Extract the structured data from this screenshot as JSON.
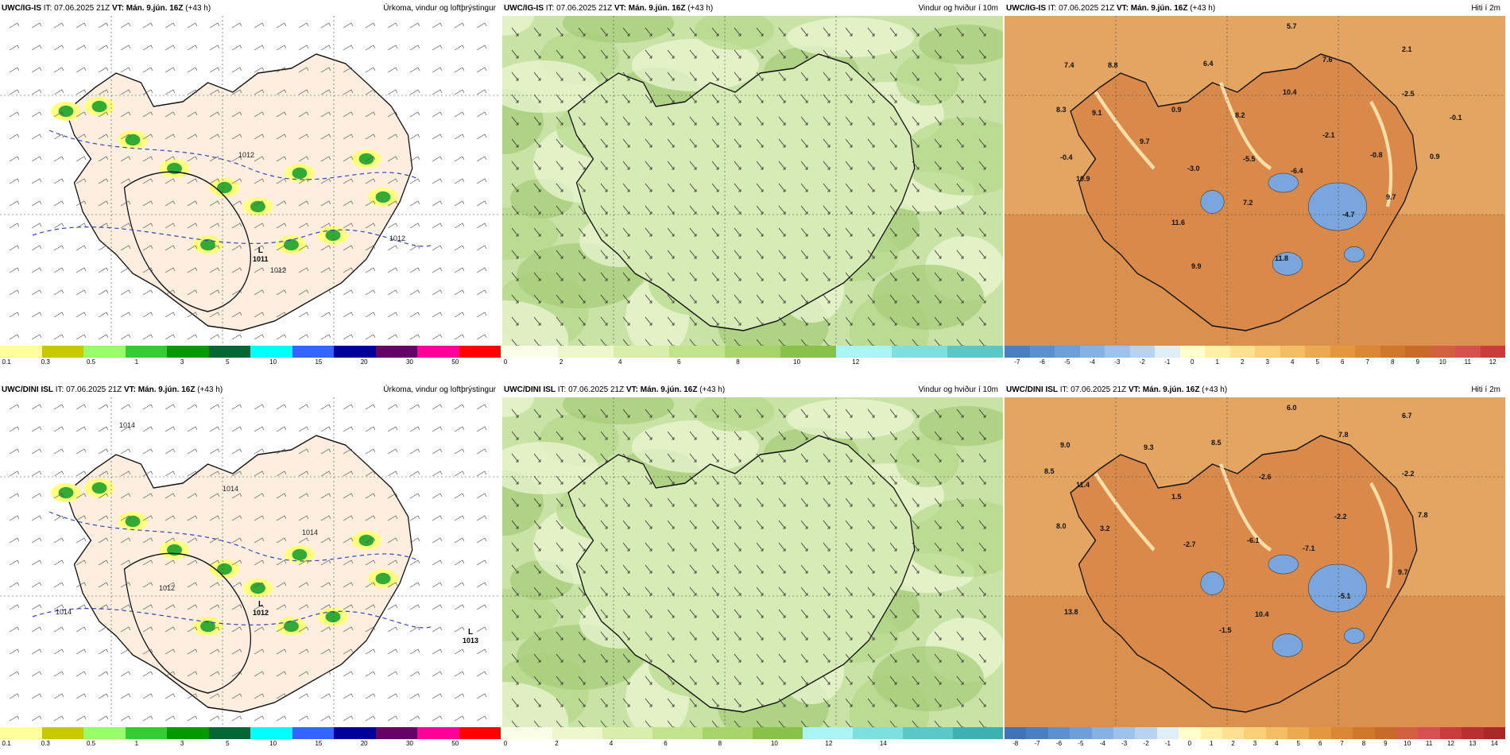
{
  "panels": [
    {
      "row": 0,
      "col": 0,
      "model": "UWC/IG-IS",
      "it_label": "IT:",
      "it": "07.06.2025 21Z",
      "vt_label": "VT:",
      "vt": "Mán. 9.jún. 16Z",
      "lead": "(+43 h)",
      "title": "Úrkoma, vindur og loftþrýstingur",
      "legend_labels": [
        "0.1",
        "0.3",
        "0.5",
        "1",
        "3",
        "5",
        "10",
        "15",
        "20",
        "30",
        "50"
      ],
      "legend_colors": [
        "#ffff99",
        "#c8c800",
        "#99ff66",
        "#33cc33",
        "#009900",
        "#006633",
        "#00ffff",
        "#3366ff",
        "#000099",
        "#660066",
        "#ff0099",
        "#ff0000"
      ],
      "isobars": [
        "1012",
        "1012",
        "1012"
      ],
      "lows": [
        {
          "label": "L",
          "value": "1011"
        }
      ]
    },
    {
      "row": 0,
      "col": 1,
      "model": "UWC/IG-IS",
      "it_label": "IT:",
      "it": "07.06.2025 21Z",
      "vt_label": "VT:",
      "vt": "Mán. 9.jún. 16Z",
      "lead": "(+43 h)",
      "title": "Vindur og hviður í 10m",
      "legend_labels": [
        "0",
        "2",
        "4",
        "6",
        "8",
        "10",
        "12"
      ],
      "legend_colors": [
        "#fafde8",
        "#eef7cc",
        "#d9eeaa",
        "#c2e28c",
        "#a8d36a",
        "#88c24a",
        "#a9f5f5",
        "#7fdede",
        "#5cc7c7"
      ]
    },
    {
      "row": 0,
      "col": 2,
      "model": "UWC/IG-IS",
      "it_label": "IT:",
      "it": "07.06.2025 21Z",
      "vt_label": "VT:",
      "vt": "Mán. 9.jún. 16Z",
      "lead": "(+43 h)",
      "title": "Hiti í 2m",
      "legend_labels": [
        "-7",
        "-6",
        "-5",
        "-4",
        "-3",
        "-2",
        "-1",
        "0",
        "1",
        "2",
        "3",
        "4",
        "5",
        "6",
        "7",
        "8",
        "9",
        "10",
        "11",
        "12"
      ],
      "legend_colors": [
        "#4a7fc4",
        "#5b8fd0",
        "#6f9fdb",
        "#85b1e4",
        "#9dc2ec",
        "#b6d3f2",
        "#dfeef5",
        "#ffffcc",
        "#fff0a8",
        "#fde090",
        "#f9cf78",
        "#f3bd63",
        "#ecaa50",
        "#e39840",
        "#d98733",
        "#cf782b",
        "#c86a2a",
        "#d06040",
        "#d55050",
        "#c83c3c"
      ],
      "values": [
        "5.7",
        "2.1",
        "7.4",
        "8.8",
        "6.4",
        "7.6",
        "-2.5",
        "8.3",
        "9.1",
        "10.4",
        "0.9",
        "8.2",
        "-0.1",
        "9.7",
        "-2.1",
        "-0.4",
        "-3.0",
        "-5.5",
        "-6.4",
        "-0.8",
        "0.9",
        "10.9",
        "7.2",
        "9.7",
        "11.6",
        "-4.7",
        "11.8",
        "9.9"
      ]
    },
    {
      "row": 1,
      "col": 0,
      "model": "UWC/DINI ISL",
      "it_label": "IT:",
      "it": "07.06.2025 21Z",
      "vt_label": "VT:",
      "vt": "Mán. 9.jún. 16Z",
      "lead": "(+43 h)",
      "title": "Úrkoma, vindur og loftþrýstingur",
      "legend_labels": [
        "0.1",
        "0.3",
        "0.5",
        "1",
        "3",
        "5",
        "10",
        "15",
        "20",
        "30",
        "50"
      ],
      "legend_colors": [
        "#ffff99",
        "#c8c800",
        "#99ff66",
        "#33cc33",
        "#009900",
        "#006633",
        "#00ffff",
        "#3366ff",
        "#000099",
        "#660066",
        "#ff0099",
        "#ff0000"
      ],
      "isobars": [
        "1014",
        "1014",
        "1014",
        "1012",
        "1014"
      ],
      "lows": [
        {
          "label": "L",
          "value": "1012"
        },
        {
          "label": "L",
          "value": "1013"
        }
      ]
    },
    {
      "row": 1,
      "col": 1,
      "model": "UWC/DINI ISL",
      "it_label": "IT:",
      "it": "07.06.2025 21Z",
      "vt_label": "VT:",
      "vt": "Mán. 9.jún. 16Z",
      "lead": "(+43 h)",
      "title": "Vindur og hviður í 10m",
      "legend_labels": [
        "0",
        "2",
        "4",
        "6",
        "8",
        "10",
        "12",
        "14"
      ],
      "legend_colors": [
        "#fafde8",
        "#eef7cc",
        "#d9eeaa",
        "#c2e28c",
        "#a8d36a",
        "#88c24a",
        "#a9f5f5",
        "#7fdede",
        "#5cc7c7",
        "#3fb0b0"
      ]
    },
    {
      "row": 1,
      "col": 2,
      "model": "UWC/DINI ISL",
      "it_label": "IT:",
      "it": "07.06.2025 21Z",
      "vt_label": "VT:",
      "vt": "Mán. 9.jún. 16Z",
      "lead": "(+43 h)",
      "title": "Hiti í 2m",
      "legend_labels": [
        "-8",
        "-7",
        "-6",
        "-5",
        "-4",
        "-3",
        "-2",
        "-1",
        "0",
        "1",
        "2",
        "3",
        "4",
        "5",
        "6",
        "7",
        "8",
        "9",
        "10",
        "11",
        "12",
        "13",
        "14"
      ],
      "legend_colors": [
        "#3f72b8",
        "#4a7fc4",
        "#5b8fd0",
        "#6f9fdb",
        "#85b1e4",
        "#9dc2ec",
        "#b6d3f2",
        "#dfeef5",
        "#ffffcc",
        "#fff0a8",
        "#fde090",
        "#f9cf78",
        "#f3bd63",
        "#ecaa50",
        "#e39840",
        "#d98733",
        "#cf782b",
        "#c86a2a",
        "#d06040",
        "#d55050",
        "#c83c3c",
        "#b83030",
        "#a82828"
      ],
      "values": [
        "6.0",
        "6.7",
        "9.0",
        "9.3",
        "8.5",
        "7.8",
        "8.5",
        "-2.6",
        "-2.2",
        "11.4",
        "1.5",
        "-2.2",
        "7.8",
        "8.0",
        "3.2",
        "-2.7",
        "-6.1",
        "-7.1",
        "9.7",
        "-5.1",
        "13.8",
        "10.4",
        "-1.5"
      ]
    }
  ]
}
